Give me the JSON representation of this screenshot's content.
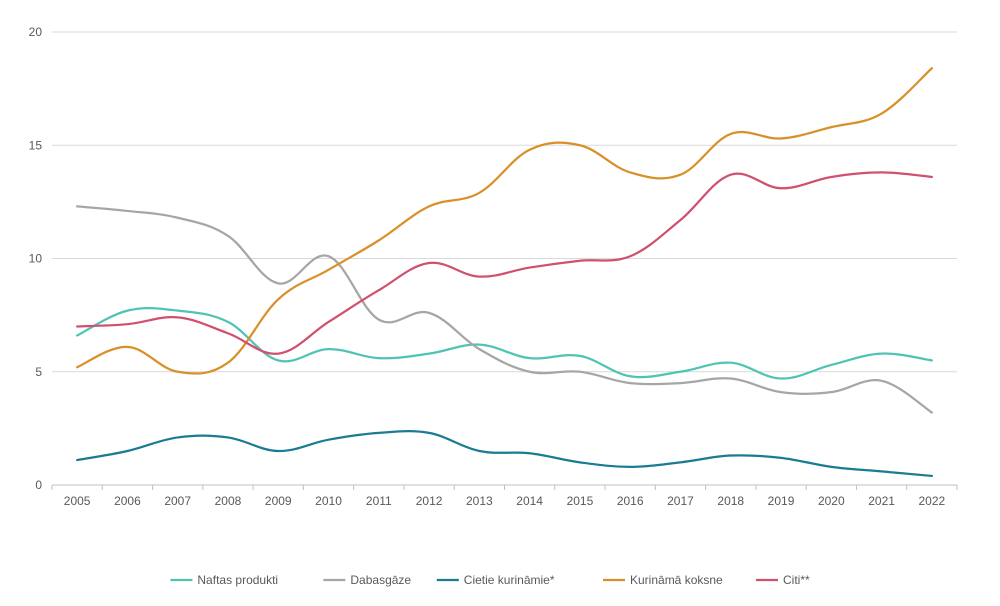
{
  "chart_data": {
    "type": "line",
    "title": "",
    "xlabel": "",
    "ylabel": "",
    "x": [
      "2005",
      "2006",
      "2007",
      "2008",
      "2009",
      "2010",
      "2011",
      "2012",
      "2013",
      "2014",
      "2015",
      "2016",
      "2017",
      "2018",
      "2019",
      "2020",
      "2021",
      "2022"
    ],
    "ylim": [
      0,
      20
    ],
    "yticks": [
      "0",
      "5",
      "10",
      "15",
      "20"
    ],
    "grid": "horizontal",
    "legend_position": "bottom",
    "series": [
      {
        "name": "Naftas produkti",
        "color": "#4fc3b4",
        "values": [
          6.6,
          7.7,
          7.7,
          7.2,
          5.5,
          6.0,
          5.6,
          5.8,
          6.2,
          5.6,
          5.7,
          4.8,
          5.0,
          5.4,
          4.7,
          5.3,
          5.8,
          5.5
        ]
      },
      {
        "name": "Dabasgāze",
        "color": "#a6a6a6",
        "values": [
          12.3,
          12.1,
          11.8,
          11.0,
          8.9,
          10.1,
          7.3,
          7.6,
          6.0,
          5.0,
          5.0,
          4.5,
          4.5,
          4.7,
          4.1,
          4.1,
          4.6,
          3.2
        ]
      },
      {
        "name": "Cietie kurināmie*",
        "color": "#1b7b93",
        "values": [
          1.1,
          1.5,
          2.1,
          2.1,
          1.5,
          2.0,
          2.3,
          2.3,
          1.5,
          1.4,
          1.0,
          0.8,
          1.0,
          1.3,
          1.2,
          0.8,
          0.6,
          0.4
        ]
      },
      {
        "name": "Kurināmā koksne",
        "color": "#d9902a",
        "values": [
          5.2,
          6.1,
          5.0,
          5.4,
          8.2,
          9.5,
          10.8,
          12.3,
          12.9,
          14.8,
          15.0,
          13.8,
          13.7,
          15.5,
          15.3,
          15.8,
          16.4,
          18.4
        ]
      },
      {
        "name": "Citi**",
        "color": "#d0506e",
        "values": [
          7.0,
          7.1,
          7.4,
          6.7,
          5.8,
          7.2,
          8.6,
          9.8,
          9.2,
          9.6,
          9.9,
          10.1,
          11.7,
          13.7,
          13.1,
          13.6,
          13.8,
          13.6
        ]
      }
    ]
  }
}
